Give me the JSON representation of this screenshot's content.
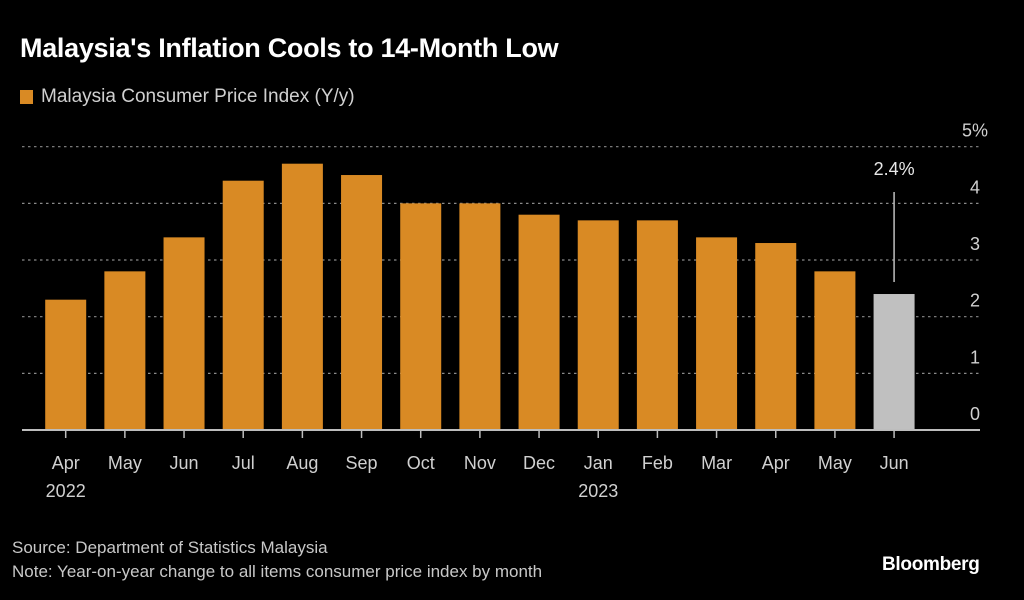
{
  "header": {
    "title": "Malaysia's Inflation Cools to 14-Month Low"
  },
  "legend": {
    "label": "Malaysia Consumer Price Index (Y/y)"
  },
  "colors": {
    "background": "#000000",
    "bar": "#d98a24",
    "highlight_bar": "#c0c0c0",
    "gridline": "#8a8a8a",
    "axis": "#bdbdbd",
    "text": "#d0d0d0"
  },
  "chart_data": {
    "type": "bar",
    "title": "Malaysia's Inflation Cools to 14-Month Low",
    "xlabel": "",
    "ylabel": "",
    "categories": [
      "Apr",
      "May",
      "Jun",
      "Jul",
      "Aug",
      "Sep",
      "Oct",
      "Nov",
      "Dec",
      "Jan",
      "Feb",
      "Mar",
      "Apr",
      "May",
      "Jun"
    ],
    "year_labels": [
      {
        "index": 0,
        "label": "2022"
      },
      {
        "index": 9,
        "label": "2023"
      }
    ],
    "series": [
      {
        "name": "Malaysia Consumer Price Index (Y/y)",
        "values": [
          2.3,
          2.8,
          3.4,
          4.4,
          4.7,
          4.5,
          4.0,
          4.0,
          3.8,
          3.7,
          3.7,
          3.4,
          3.3,
          2.8,
          2.4
        ]
      }
    ],
    "highlight_index": 14,
    "annotation": {
      "index": 14,
      "label": "2.4%"
    },
    "ylim": [
      0,
      5
    ],
    "yticks": [
      0,
      1,
      2,
      3,
      4,
      5
    ],
    "ytick_labels": [
      "0",
      "1",
      "2",
      "3",
      "4",
      "5%"
    ],
    "y_axis_side": "right",
    "grid": true,
    "legend_position": "top-left"
  },
  "footer": {
    "source": "Source: Department of Statistics Malaysia",
    "note": "Note: Year-on-year change to all items consumer price index by month"
  },
  "brand": {
    "name": "Bloomberg"
  }
}
